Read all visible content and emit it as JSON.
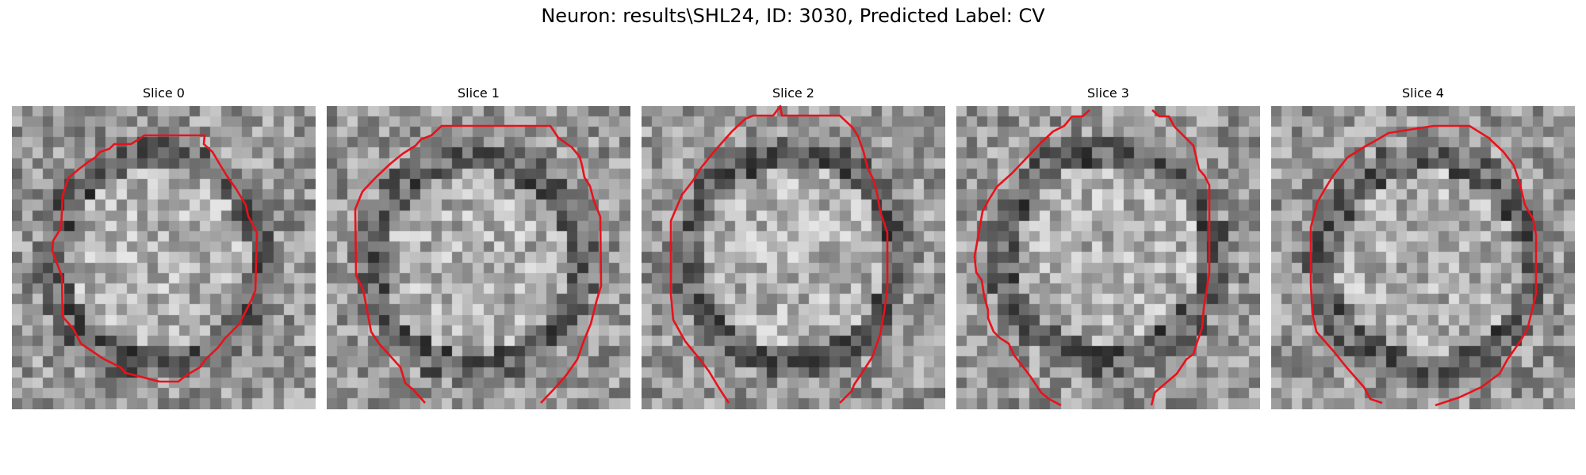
{
  "figure": {
    "title": "Neuron: results\\SHL24, ID: 3030, Predicted Label: CV"
  },
  "contour_color": "#e8121b",
  "panels": [
    {
      "title": "Slice 0"
    },
    {
      "title": "Slice 1"
    },
    {
      "title": "Slice 2"
    },
    {
      "title": "Slice 3"
    },
    {
      "title": "Slice 4"
    }
  ]
}
